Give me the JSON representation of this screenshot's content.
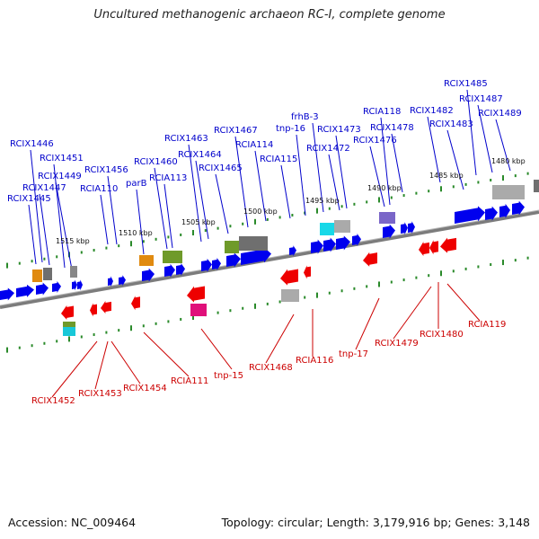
{
  "header": {
    "title": "Uncultured methanogenic archaeon RC-I, complete genome"
  },
  "footer": {
    "accession": "Accession: NC_009464",
    "summary": "Topology: circular; Length: 3,179,916 bp; Genes: 3,148"
  },
  "colors": {
    "forward_gene": "#0000ee",
    "reverse_gene": "#ee0000",
    "forward_label": "#0000cc",
    "reverse_label": "#cc0000",
    "backbone": "#808080",
    "tick": "#2a8a2a"
  },
  "map": {
    "kbp_labels": [
      "1515 kbp",
      "1510 kbp",
      "1505 kbp",
      "1500 kbp",
      "1495 kbp",
      "1490 kbp",
      "1485 kbp",
      "1480 kbp"
    ],
    "top_labels": [
      "RCIX1446",
      "RCIX1451",
      "RCIX1449",
      "RCIX1447",
      "RCIX1445",
      "RCIX1456",
      "RCIA110",
      "parB",
      "RCIX1460",
      "RCIA113",
      "RCIX1463",
      "RCIX1464",
      "RCIX1465",
      "RCIX1467",
      "RCIA114",
      "RCIA115",
      "tnp-16",
      "frhB-3",
      "RCIX1472",
      "RCIX1473",
      "RCIA118",
      "RCIX1476",
      "RCIX1478",
      "RCIX1482",
      "RCIX1483",
      "RCIX1485",
      "RCIX1487",
      "RCIX1489"
    ],
    "bottom_labels": [
      "RCIX1452",
      "RCIX1453",
      "RCIX1454",
      "RCIA111",
      "tnp-15",
      "RCIX1468",
      "RCIA116",
      "tnp-17",
      "RCIX1479",
      "RCIX1480",
      "RCIA119"
    ]
  }
}
